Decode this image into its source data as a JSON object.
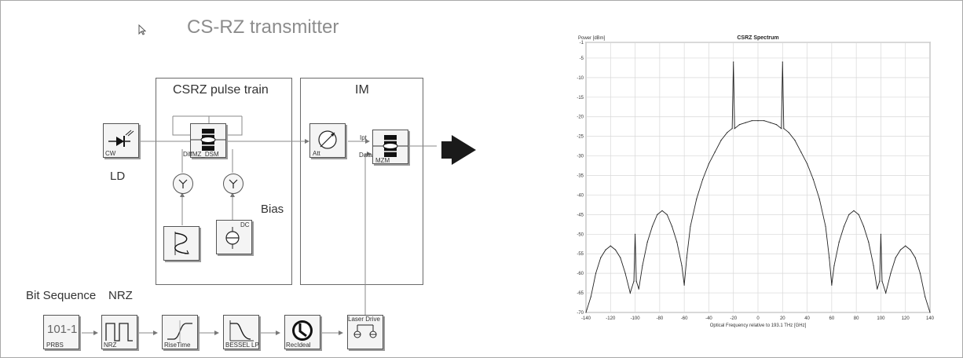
{
  "title": "CS-RZ transmitter",
  "sections": {
    "pulse_train": "CSRZ pulse train",
    "im": "IM"
  },
  "labels": {
    "ld": "LD",
    "bias": "Bias",
    "bit_sequence": "Bit Sequence",
    "nrz": "NRZ"
  },
  "blocks": {
    "cw": "CW",
    "diffmz": "DiffMZ_DSM",
    "dc": "DC",
    "att": "Att",
    "mzm": "MZM",
    "in_port": "Ipt",
    "data_port": "Data",
    "prbs": "PRBS",
    "prbs_glyph": "101-1",
    "nrz": "NRZ",
    "risetime": "RiseTime",
    "bessel": "BESSEL LP",
    "recideal": "RecIdeal",
    "laser_drive": "Laser Drive"
  },
  "chart_data": {
    "type": "line",
    "title": "CSRZ Spectrum",
    "ylabel": "Power [dBm]",
    "xlabel": "Optical Frequency relative to 193.1 THz [GHz]",
    "xlim": [
      -140,
      140
    ],
    "ylim": [
      -70,
      -1
    ],
    "xticks": [
      -140,
      -120,
      -100,
      -80,
      -60,
      -40,
      -20,
      0,
      20,
      40,
      60,
      80,
      100,
      120,
      140
    ],
    "yticks": [
      -1,
      -5,
      -10,
      -15,
      -20,
      -25,
      -30,
      -35,
      -40,
      -45,
      -50,
      -55,
      -60,
      -65,
      -70
    ],
    "grid": true,
    "series": [
      {
        "x": [
          -140,
          -136,
          -132,
          -128,
          -124,
          -120,
          -116,
          -112,
          -108,
          -104,
          -101,
          -100,
          -99,
          -97,
          -94,
          -90,
          -86,
          -82,
          -78,
          -74,
          -70,
          -66,
          -62,
          -60,
          -58,
          -55,
          -50,
          -45,
          -40,
          -35,
          -30,
          -25,
          -21,
          -20,
          -19,
          -15,
          -10,
          -5,
          0,
          5,
          10,
          15,
          19,
          20,
          21,
          25,
          30,
          35,
          40,
          45,
          50,
          55,
          58,
          60,
          62,
          66,
          70,
          74,
          78,
          82,
          86,
          90,
          94,
          97,
          99,
          100,
          101,
          104,
          108,
          112,
          116,
          120,
          124,
          128,
          132,
          136,
          140
        ],
        "y": [
          -70,
          -66,
          -60,
          -56,
          -54,
          -53,
          -54,
          -56,
          -60,
          -65,
          -62,
          -50,
          -62,
          -64,
          -58,
          -52,
          -48,
          -45,
          -44,
          -45,
          -48,
          -52,
          -58,
          -63,
          -56,
          -48,
          -41,
          -36,
          -32,
          -29,
          -26,
          -24,
          -23,
          -6,
          -23,
          -22,
          -21.5,
          -21,
          -21,
          -21,
          -21.5,
          -22,
          -23,
          -6,
          -23,
          -24,
          -26,
          -29,
          -32,
          -36,
          -41,
          -48,
          -56,
          -63,
          -58,
          -52,
          -48,
          -45,
          -44,
          -45,
          -48,
          -52,
          -58,
          -64,
          -62,
          -50,
          -62,
          -65,
          -60,
          -56,
          -54,
          -53,
          -54,
          -56,
          -60,
          -66,
          -70
        ]
      }
    ]
  }
}
